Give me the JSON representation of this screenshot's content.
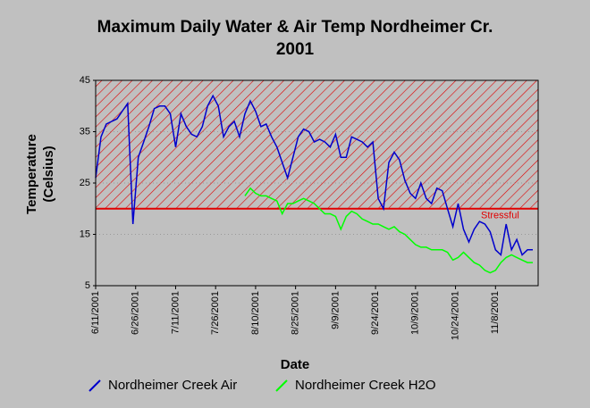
{
  "chart_data": {
    "type": "line",
    "title": [
      "Maximum Daily Water &  Air Temp Nordheimer Cr.",
      "2001"
    ],
    "x_label": "Date",
    "y_label": [
      "Temperature",
      "(Celsius)"
    ],
    "xlim": [
      0,
      166
    ],
    "xticks": [
      {
        "value": 0,
        "label": "6/11/2001"
      },
      {
        "value": 15,
        "label": "6/26/2001"
      },
      {
        "value": 30,
        "label": "7/11/2001"
      },
      {
        "value": 45,
        "label": "7/26/2001"
      },
      {
        "value": 60,
        "label": "8/10/2001"
      },
      {
        "value": 75,
        "label": "8/25/2001"
      },
      {
        "value": 90,
        "label": "9/9/2001"
      },
      {
        "value": 105,
        "label": "9/24/2001"
      },
      {
        "value": 120,
        "label": "10/9/2001"
      },
      {
        "value": 135,
        "label": "10/24/2001"
      },
      {
        "value": 150,
        "label": "11/8/2001"
      }
    ],
    "ylim": [
      5,
      45
    ],
    "yticks": [
      5,
      15,
      25,
      35,
      45
    ],
    "grid": true,
    "threshold": {
      "value": 20,
      "label": "Stressful",
      "color": "#e00000"
    },
    "series": [
      {
        "name": "Nordheimer Creek Air",
        "color": "#0000cc",
        "x": [
          0,
          2,
          4,
          6,
          8,
          10,
          12,
          14,
          16,
          18,
          20,
          22,
          24,
          26,
          28,
          30,
          32,
          34,
          36,
          38,
          40,
          42,
          44,
          46,
          48,
          50,
          52,
          54,
          56,
          58,
          60,
          62,
          64,
          66,
          68,
          70,
          72,
          74,
          76,
          78,
          80,
          82,
          84,
          86,
          88,
          90,
          92,
          94,
          96,
          98,
          100,
          102,
          104,
          106,
          108,
          110,
          112,
          114,
          116,
          118,
          120,
          122,
          124,
          126,
          128,
          130,
          132,
          134,
          136,
          138,
          140,
          142,
          144,
          146,
          148,
          150,
          152,
          154,
          156,
          158,
          160,
          162,
          164
        ],
        "values": [
          26,
          34,
          36.5,
          37,
          37.5,
          39,
          40.5,
          17,
          30,
          33,
          36,
          39.5,
          40,
          40,
          38.5,
          32,
          38.5,
          36,
          34.5,
          34,
          36,
          40,
          42,
          40,
          34,
          36,
          37,
          34,
          38.5,
          41,
          39,
          36,
          36.5,
          34,
          32,
          29,
          26,
          30,
          34,
          35.5,
          35,
          33,
          33.5,
          33,
          32,
          34.5,
          30,
          30,
          34,
          33.5,
          33,
          32,
          33,
          22,
          20,
          29,
          31,
          29.5,
          25.5,
          23,
          22,
          25,
          22,
          21,
          24,
          23.5,
          20,
          16.5,
          21,
          16,
          13.5,
          16,
          17.5,
          17,
          15.5,
          12,
          11,
          17,
          12,
          14,
          11,
          12,
          12
        ]
      },
      {
        "name": "Nordheimer Creek H2O",
        "color": "#00ff00",
        "x": [
          56,
          58,
          60,
          62,
          64,
          66,
          68,
          70,
          72,
          74,
          76,
          78,
          80,
          82,
          84,
          86,
          88,
          90,
          92,
          94,
          96,
          98,
          100,
          102,
          104,
          106,
          108,
          110,
          112,
          114,
          116,
          118,
          120,
          122,
          124,
          126,
          128,
          130,
          132,
          134,
          136,
          138,
          140,
          142,
          144,
          146,
          148,
          150,
          152,
          154,
          156,
          158,
          160,
          162,
          164
        ],
        "values": [
          22.5,
          24,
          23,
          22.5,
          22.5,
          22,
          21.5,
          19,
          21,
          21,
          21.5,
          22,
          21.5,
          21,
          20,
          19,
          19,
          18.5,
          16,
          18.5,
          19.5,
          19,
          18,
          17.5,
          17,
          17,
          16.5,
          16,
          16.5,
          15.5,
          15,
          14,
          13,
          12.5,
          12.5,
          12,
          12,
          12,
          11.5,
          10,
          10.5,
          11.5,
          10.5,
          9.5,
          9,
          8,
          7.5,
          8,
          9.5,
          10.5,
          11,
          10.5,
          10,
          9.5,
          9.5
        ]
      }
    ]
  }
}
